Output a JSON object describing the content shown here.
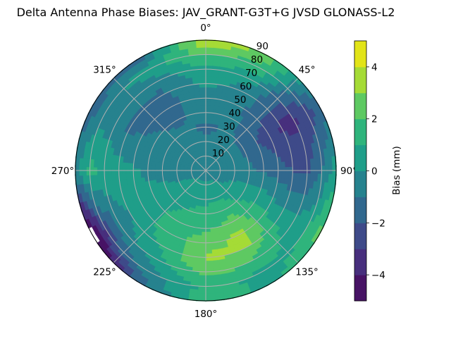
{
  "chart_data": {
    "type": "heatmap",
    "subtype": "polar filled contour",
    "title": "Delta Antenna Phase Biases: JAV_GRANT-G3T+G JVSD GLONASS-L2",
    "theta_zero": "north",
    "theta_direction": "clockwise",
    "theta_ticks": [
      0,
      45,
      90,
      135,
      180,
      225,
      270,
      315
    ],
    "theta_tick_labels": [
      "0°",
      "45°",
      "90°",
      "135°",
      "180°",
      "225°",
      "270°",
      "315°"
    ],
    "r_ticks": [
      10,
      20,
      30,
      40,
      50,
      60,
      70,
      80,
      90
    ],
    "r_tick_labels": [
      "10",
      "20",
      "30",
      "40",
      "50",
      "60",
      "70",
      "80",
      "90"
    ],
    "rlim": [
      0,
      90
    ],
    "grid": true,
    "colorbar": {
      "label": "Bias (mm)",
      "levels": [
        -5,
        -4,
        -3,
        -2,
        -1,
        0,
        1,
        2,
        3,
        4,
        5
      ],
      "ticks": [
        -4,
        -2,
        0,
        2,
        4
      ],
      "tick_labels": [
        "−4",
        "−2",
        "0",
        "2",
        "4"
      ],
      "colors": [
        "#471365",
        "#472f7d",
        "#3e4a89",
        "#31688e",
        "#26828e",
        "#1f9e89",
        "#2fb47c",
        "#5ec962",
        "#a5db36",
        "#e2e418"
      ],
      "colormap": "viridis",
      "position": "right"
    },
    "grid_azimuths": [
      0,
      30,
      60,
      90,
      120,
      150,
      180,
      210,
      240,
      270,
      300,
      330
    ],
    "grid_zeniths": [
      0,
      10,
      20,
      30,
      40,
      50,
      60,
      70,
      80,
      90
    ],
    "values": [
      [
        -0.5,
        -0.5,
        -0.8,
        -1.2,
        -0.6,
        -0.4,
        0.3,
        0.8,
        2.2,
        4.2
      ],
      [
        -0.5,
        -0.5,
        -0.8,
        -0.9,
        -0.8,
        -0.8,
        -0.5,
        0.3,
        1.5,
        2.5
      ],
      [
        -0.5,
        -0.5,
        -0.6,
        -1.2,
        -2.0,
        -2.6,
        -3.2,
        -3.3,
        -2.5,
        -1.5
      ],
      [
        -0.5,
        -0.5,
        -0.5,
        -0.8,
        -1.2,
        -1.6,
        -2.0,
        -2.2,
        -1.0,
        0.5
      ],
      [
        -0.5,
        -0.3,
        0.2,
        0.5,
        0.8,
        0.5,
        0.3,
        0.2,
        1.0,
        2.5
      ],
      [
        -0.5,
        0.2,
        0.8,
        1.5,
        2.4,
        3.3,
        3.0,
        1.8,
        0.8,
        0.5
      ],
      [
        -0.5,
        0.3,
        0.8,
        1.3,
        1.8,
        2.6,
        3.2,
        2.5,
        1.2,
        2.0
      ],
      [
        -0.5,
        0.3,
        0.7,
        1.0,
        1.4,
        1.5,
        1.2,
        0.5,
        -0.5,
        -1.5
      ],
      [
        -0.5,
        0.0,
        0.2,
        0.5,
        0.6,
        0.4,
        0.0,
        -0.8,
        -2.8,
        -6.0
      ],
      [
        -0.5,
        -0.5,
        -0.5,
        -0.5,
        -0.3,
        0.2,
        0.5,
        0.8,
        1.3,
        -0.5
      ],
      [
        -0.5,
        -0.5,
        -0.5,
        -0.6,
        -0.8,
        -1.0,
        -1.2,
        -0.5,
        -0.5,
        -1.5
      ],
      [
        -0.5,
        -0.5,
        -0.6,
        -0.8,
        -1.2,
        -1.4,
        -1.3,
        -0.5,
        0.5,
        -1.5
      ]
    ]
  }
}
